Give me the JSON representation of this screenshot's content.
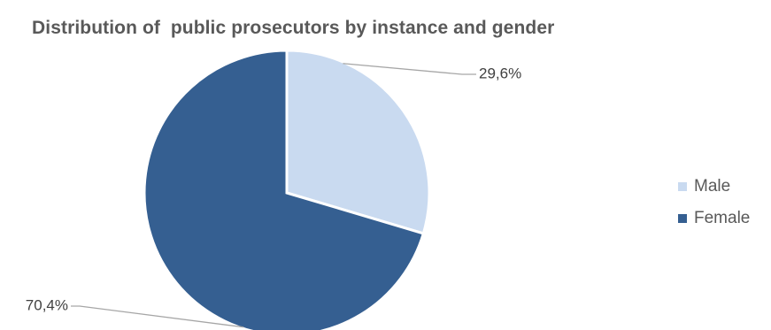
{
  "chart_data": {
    "type": "pie",
    "title": "Distribution of  public prosecutors by instance and gender",
    "slices": [
      {
        "label": "Male",
        "value": 29.6,
        "display": "29,6%",
        "color": "#c9daf0"
      },
      {
        "label": "Female",
        "value": 70.4,
        "display": "70,4%",
        "color": "#355f91"
      }
    ],
    "legend_position": "right",
    "start_angle_deg": 0,
    "direction": "clockwise"
  }
}
